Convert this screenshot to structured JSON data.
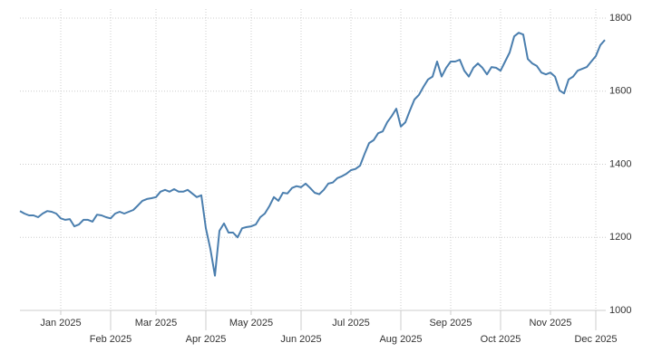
{
  "chart_data": {
    "type": "line",
    "color": "#4a7eae",
    "grid": true,
    "y_axis_side": "right",
    "ylim": [
      1000,
      1800
    ],
    "yticks": [
      1000,
      1200,
      1400,
      1600,
      1800
    ],
    "categories": [
      null,
      null,
      null,
      null,
      null,
      null,
      null,
      null,
      null,
      "Jan 2025",
      null,
      null,
      null,
      null,
      null,
      null,
      null,
      null,
      null,
      null,
      "Feb 2025",
      null,
      null,
      null,
      null,
      null,
      null,
      null,
      null,
      null,
      "Mar 2025",
      null,
      null,
      null,
      null,
      null,
      null,
      null,
      null,
      null,
      null,
      "Apr 2025",
      null,
      null,
      null,
      null,
      null,
      null,
      null,
      null,
      null,
      "May 2025",
      null,
      null,
      null,
      null,
      null,
      null,
      null,
      null,
      null,
      null,
      "Jun 2025",
      null,
      null,
      null,
      null,
      null,
      null,
      null,
      null,
      null,
      null,
      "Jul 2025",
      null,
      null,
      null,
      null,
      null,
      null,
      null,
      null,
      null,
      null,
      "Aug 2025",
      null,
      null,
      null,
      null,
      null,
      null,
      null,
      null,
      null,
      null,
      "Sep 2025",
      null,
      null,
      null,
      null,
      null,
      null,
      null,
      null,
      null,
      null,
      "Oct 2025",
      null,
      null,
      null,
      null,
      null,
      null,
      null,
      null,
      null,
      null,
      "Nov 2025",
      null,
      null,
      null,
      null,
      null,
      null,
      null,
      null,
      null,
      "Dec 2025",
      null,
      null
    ],
    "values": [
      1272,
      1265,
      1260,
      1260,
      1255,
      1265,
      1272,
      1270,
      1265,
      1252,
      1248,
      1250,
      1230,
      1235,
      1248,
      1248,
      1243,
      1262,
      1260,
      1255,
      1252,
      1265,
      1270,
      1265,
      1270,
      1275,
      1287,
      1300,
      1305,
      1307,
      1310,
      1325,
      1330,
      1325,
      1332,
      1325,
      1325,
      1330,
      1320,
      1310,
      1315,
      1225,
      1168,
      1095,
      1218,
      1238,
      1213,
      1213,
      1200,
      1225,
      1228,
      1230,
      1235,
      1255,
      1265,
      1285,
      1310,
      1300,
      1322,
      1320,
      1335,
      1340,
      1337,
      1347,
      1335,
      1322,
      1318,
      1330,
      1347,
      1350,
      1362,
      1367,
      1374,
      1384,
      1387,
      1396,
      1428,
      1458,
      1466,
      1485,
      1490,
      1515,
      1532,
      1552,
      1503,
      1515,
      1547,
      1577,
      1590,
      1612,
      1632,
      1640,
      1681,
      1640,
      1664,
      1681,
      1681,
      1686,
      1656,
      1640,
      1664,
      1676,
      1664,
      1646,
      1666,
      1664,
      1656,
      1681,
      1706,
      1750,
      1760,
      1755,
      1688,
      1676,
      1669,
      1651,
      1646,
      1651,
      1640,
      1602,
      1594,
      1632,
      1640,
      1656,
      1661,
      1666,
      1681,
      1696,
      1726,
      1740
    ]
  }
}
